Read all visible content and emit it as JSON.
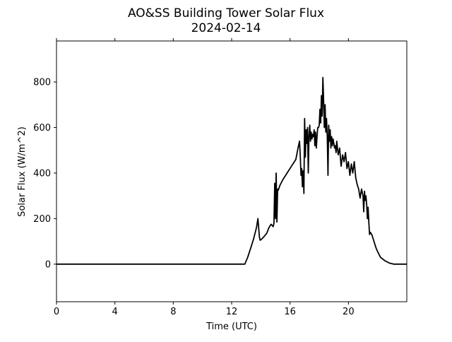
{
  "chart_data": {
    "type": "line",
    "title": "AO&SS Building Tower Solar Flux",
    "subtitle": "2024-02-14",
    "xlabel": "Time (UTC)",
    "ylabel": "Solar Flux (W/m^2)",
    "xlim": [
      0,
      24
    ],
    "ylim": [
      -165,
      980
    ],
    "xticks": [
      0,
      4,
      8,
      12,
      16,
      20
    ],
    "yticks": [
      0,
      200,
      400,
      600,
      800
    ],
    "grid": false,
    "legend": "none",
    "colors": {
      "line": "#000000",
      "axes": "#000000",
      "background": "#ffffff"
    },
    "series": [
      {
        "x": [
          0,
          12.9,
          13.1,
          13.3,
          13.5,
          13.7,
          13.8,
          13.9,
          13.95,
          14.05,
          14.2,
          14.4,
          14.55,
          14.7,
          14.85,
          14.9,
          14.95,
          15.0,
          15.05,
          15.1,
          15.15,
          15.2,
          15.3,
          15.5,
          15.8,
          16.1,
          16.4,
          16.55,
          16.65,
          16.7,
          16.75,
          16.8,
          16.85,
          16.9,
          16.95,
          17.0,
          17.05,
          17.1,
          17.15,
          17.2,
          17.25,
          17.3,
          17.35,
          17.4,
          17.45,
          17.5,
          17.55,
          17.6,
          17.65,
          17.7,
          17.75,
          17.8,
          17.85,
          17.9,
          17.95,
          18.0,
          18.05,
          18.1,
          18.15,
          18.2,
          18.25,
          18.3,
          18.35,
          18.4,
          18.45,
          18.5,
          18.55,
          18.6,
          18.65,
          18.7,
          18.75,
          18.8,
          18.85,
          18.9,
          18.95,
          19.0,
          19.05,
          19.1,
          19.15,
          19.2,
          19.3,
          19.4,
          19.5,
          19.6,
          19.7,
          19.8,
          19.9,
          20.0,
          20.1,
          20.2,
          20.3,
          20.4,
          20.5,
          20.6,
          20.7,
          20.8,
          20.9,
          21.0,
          21.05,
          21.1,
          21.15,
          21.2,
          21.25,
          21.3,
          21.35,
          21.4,
          21.45,
          21.5,
          21.55,
          21.6,
          21.7,
          21.8,
          21.9,
          22.0,
          22.2,
          22.5,
          22.8,
          23.1,
          23.4,
          23.6,
          23.8,
          24.0
        ],
        "values": [
          0,
          0,
          30,
          70,
          110,
          160,
          200,
          120,
          105,
          110,
          120,
          135,
          160,
          175,
          165,
          180,
          355,
          200,
          400,
          185,
          330,
          325,
          345,
          370,
          400,
          430,
          460,
          510,
          540,
          480,
          390,
          420,
          340,
          410,
          310,
          640,
          470,
          590,
          530,
          600,
          400,
          560,
          610,
          540,
          580,
          550,
          570,
          560,
          590,
          520,
          580,
          510,
          560,
          600,
          600,
          610,
          680,
          620,
          740,
          650,
          820,
          720,
          600,
          700,
          580,
          640,
          560,
          390,
          610,
          540,
          590,
          510,
          560,
          520,
          550,
          530,
          510,
          520,
          490,
          540,
          480,
          510,
          430,
          480,
          450,
          490,
          420,
          450,
          390,
          440,
          400,
          450,
          380,
          350,
          330,
          290,
          330,
          300,
          230,
          320,
          280,
          300,
          260,
          200,
          250,
          180,
          130,
          140,
          135,
          130,
          110,
          90,
          70,
          55,
          30,
          15,
          5,
          0,
          0,
          0,
          0,
          0
        ]
      }
    ]
  }
}
